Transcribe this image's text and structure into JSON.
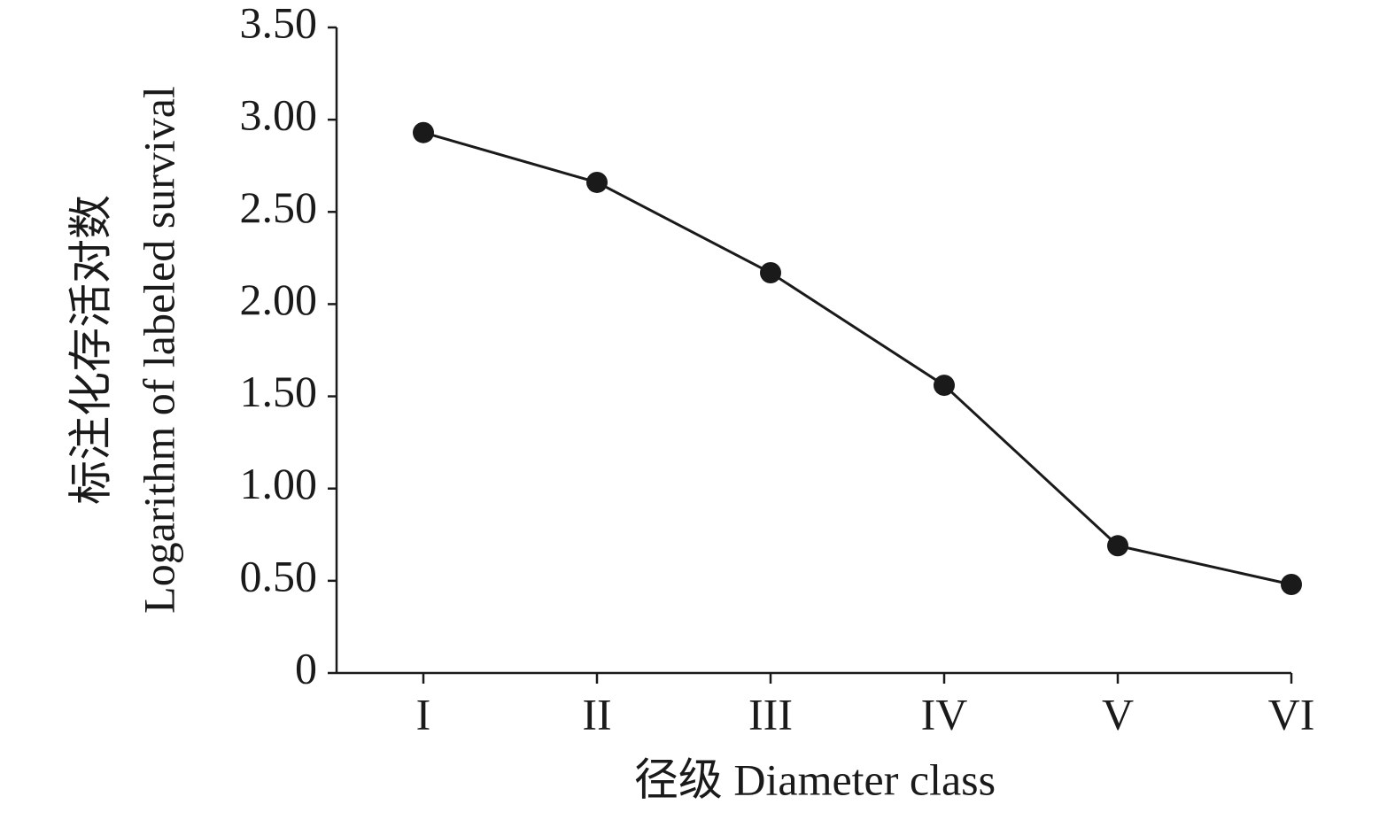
{
  "chart_data": {
    "type": "line",
    "x_label": "径级 Diameter class",
    "y_label": [
      "标注化存活对数",
      "Logarithm of labeled survival"
    ],
    "categories": [
      "I",
      "II",
      "III",
      "IV",
      "V",
      "VI"
    ],
    "values": [
      2.93,
      2.66,
      2.17,
      1.56,
      0.69,
      0.48
    ],
    "color": "#1a1a1a",
    "ylim": [
      0,
      3.5
    ],
    "yticks": [
      0,
      {
        "value": 0.5,
        "label": "0.50"
      },
      {
        "value": 1,
        "label": "1.00"
      },
      {
        "value": 1.5,
        "label": "1.50"
      },
      {
        "value": 2,
        "label": "2.00"
      },
      {
        "value": 2.5,
        "label": "2.50"
      },
      {
        "value": 3,
        "label": "3.00"
      },
      {
        "value": 3.5,
        "label": "3.50"
      }
    ],
    "grid": false
  }
}
